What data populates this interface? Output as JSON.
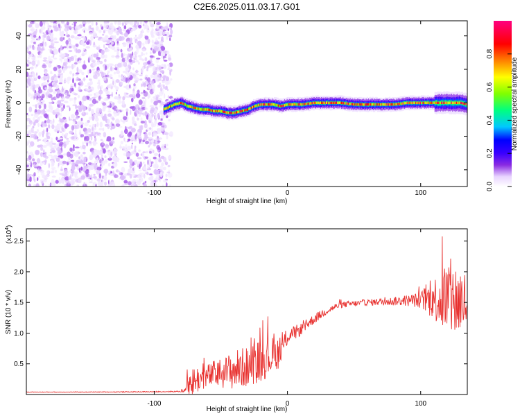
{
  "title": "C2E6.2025.011.03.17.G01",
  "chart_data": [
    {
      "type": "heatmap",
      "xlabel": "Height of straight line (km)",
      "ylabel": "Frequency (Hz)",
      "xlim": [
        -196,
        135
      ],
      "ylim": [
        -50,
        49
      ],
      "xticks": [
        -100,
        0,
        100
      ],
      "xtick_labels": [
        "-100",
        "0",
        "100"
      ],
      "yticks": [
        -40,
        -20,
        0,
        20,
        40
      ],
      "ytick_labels": [
        "-40",
        "-20",
        "0",
        "20",
        "40"
      ],
      "noise_region_x": [
        -196,
        -87
      ],
      "signal_onset_x": -93,
      "ridge": {
        "x": [
          -93,
          -85,
          -80,
          -75,
          -70,
          -65,
          -60,
          -55,
          -50,
          -45,
          -40,
          -35,
          -30,
          -25,
          -20,
          -15,
          -10,
          -5,
          0,
          10,
          20,
          30,
          40,
          50,
          60,
          70,
          80,
          90,
          100,
          110,
          120,
          130,
          135
        ],
        "y": [
          -4,
          -1,
          0,
          -2,
          -3,
          -4,
          -4,
          -5,
          -5,
          -6,
          -6,
          -5,
          -4,
          -2,
          -1,
          -1,
          -1,
          -2,
          -1,
          -1,
          0,
          0,
          0,
          -1,
          -1,
          -1,
          -1,
          0,
          0,
          0,
          0,
          0,
          -1
        ]
      },
      "colorbar": {
        "label": "Normalized spectral amplitude",
        "range": [
          0,
          1
        ],
        "ticks": [
          0.0,
          0.2,
          0.4,
          0.6,
          0.8
        ],
        "tick_labels": [
          "0.0",
          "0.2",
          "0.4",
          "0.6",
          "0.8"
        ],
        "colors": [
          "#ffffff",
          "#e8d4ff",
          "#8a2be2",
          "#3a00ff",
          "#0000ff",
          "#00c8ff",
          "#00ff80",
          "#80ff00",
          "#ffff00",
          "#ff8000",
          "#ff0000",
          "#ff0080"
        ]
      }
    },
    {
      "type": "line",
      "xlabel": "Height of straight line (km)",
      "ylabel": "SNR (10 * v/v)",
      "multiplier": "(x10",
      "multiplier_exp": "4",
      "multiplier_close": ")",
      "xlim": [
        -196,
        135
      ],
      "ylim": [
        0,
        27000
      ],
      "xticks": [
        -100,
        0,
        100
      ],
      "xtick_labels": [
        "-100",
        "0",
        "100"
      ],
      "yticks": [
        5000,
        10000,
        15000,
        20000,
        25000
      ],
      "ytick_labels": [
        "0.5",
        "1.0",
        "1.5",
        "2.0",
        "2.5"
      ],
      "color": "#e8312f",
      "series": [
        {
          "x": [
            -196,
            -150,
            -100,
            -80,
            -75,
            -70,
            -65,
            -60,
            -55,
            -50,
            -45,
            -40,
            -35,
            -30,
            -25,
            -20,
            -15,
            -10,
            -5,
            0,
            5,
            10,
            15,
            20,
            25,
            30,
            35,
            40,
            50,
            60,
            70,
            80,
            90,
            100,
            105,
            110,
            115,
            120,
            125,
            130,
            135
          ],
          "baseline": [
            400,
            400,
            450,
            500,
            1500,
            2200,
            2600,
            3000,
            3300,
            3500,
            3700,
            4000,
            4300,
            4500,
            5200,
            5500,
            6000,
            6500,
            7000,
            9500,
            10000,
            10600,
            11500,
            12300,
            13000,
            13700,
            14200,
            14600,
            14800,
            15000,
            15100,
            15200,
            15300,
            15400,
            15500,
            15600,
            15700,
            15500,
            15400,
            15200,
            15000
          ],
          "amplitude": [
            50,
            50,
            80,
            100,
            1300,
            2700,
            1800,
            2000,
            2300,
            2500,
            2800,
            3300,
            3300,
            3300,
            3500,
            3500,
            3200,
            3000,
            2400,
            1400,
            1200,
            1000,
            900,
            800,
            700,
            600,
            550,
            500,
            500,
            500,
            600,
            700,
            900,
            1300,
            2500,
            3500,
            5000,
            7000,
            6500,
            6000,
            5000
          ]
        }
      ]
    }
  ]
}
